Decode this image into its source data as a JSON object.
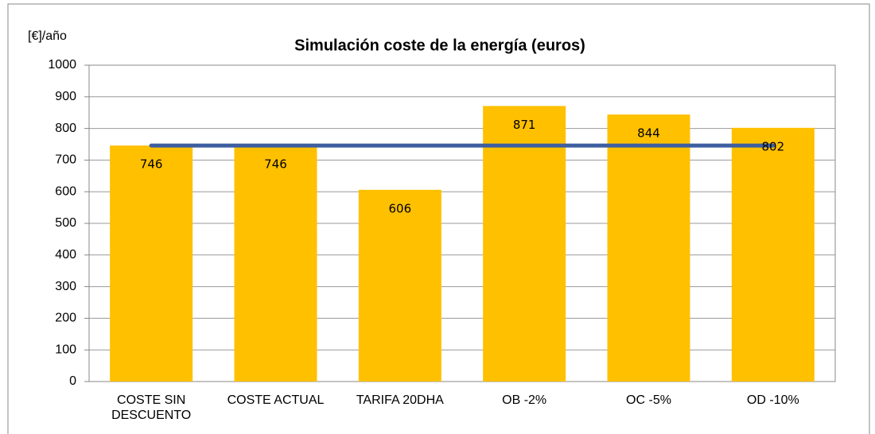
{
  "chart_data": {
    "type": "bar",
    "title": "Simulación coste de la energía (euros)",
    "y_label": "[€]/año",
    "categories": [
      "COSTE SIN DESCUENTO",
      "COSTE ACTUAL",
      "TARIFA 20DHA",
      "OB -2%",
      "OC -5%",
      "OD -10%"
    ],
    "values": [
      746,
      746,
      606,
      871,
      844,
      802
    ],
    "color": "#ffc000",
    "series": [
      {
        "type": "line",
        "color": "#3d5fa0",
        "values": [
          746,
          746,
          746,
          746,
          746,
          746
        ]
      }
    ],
    "ylim": [
      0,
      1000
    ],
    "yticks": [
      0,
      100,
      200,
      300,
      400,
      500,
      600,
      700,
      800,
      900,
      1000
    ],
    "grid": true
  }
}
